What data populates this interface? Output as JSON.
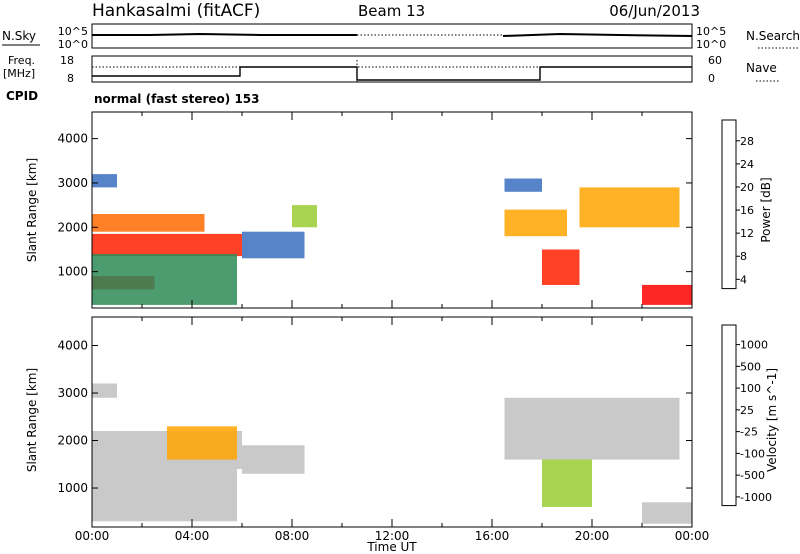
{
  "header": {
    "station": "Hankasalmi (fitACF)",
    "beam": "Beam 13",
    "date": "06/Jun/2013"
  },
  "noise_panel": {
    "left_label": "N.Sky",
    "left_ticks": [
      "10^5",
      "10^0"
    ],
    "right_ticks": [
      "10^5",
      "10^0"
    ],
    "right_label": "N.Search"
  },
  "freq_panel": {
    "left_label_1": "Freq.",
    "left_label_2": "[MHz]",
    "left_ticks": [
      "18",
      "8"
    ],
    "right_ticks": [
      "60",
      "0"
    ],
    "right_label": "Nave"
  },
  "cpid": {
    "label": "CPID",
    "text": "normal (fast stereo) 153"
  },
  "colors": {
    "power": [
      "#0000ff",
      "#1f4fd0",
      "#3a6ec0",
      "#2e8b57",
      "#3fa34d",
      "#9acd32",
      "#ffd700",
      "#ffa500",
      "#ff6a00",
      "#ff2000",
      "#ff0000"
    ],
    "velocity": [
      "#0000cc",
      "#1e5fb0",
      "#2e8b57",
      "#56b04a",
      "#9acd32",
      "#c0c0c0",
      "#c0c0c0",
      "#ffd700",
      "#ffa500",
      "#ff6a00",
      "#ff0000"
    ]
  },
  "chart_data": [
    {
      "type": "heatmap",
      "name": "power",
      "xlabel": "",
      "ylabel": "Slant Range [km]",
      "xlim": [
        0,
        24
      ],
      "ylim": [
        180,
        4600
      ],
      "yticks": [
        1000,
        2000,
        3000,
        4000
      ],
      "colorbar": {
        "label": "Power [dB]",
        "ticks": [
          "28",
          "24",
          "20",
          "16",
          "12",
          "8",
          "4"
        ],
        "range": [
          0,
          30
        ]
      },
      "bands": [
        {
          "x": [
            0.0,
            6.0
          ],
          "y": [
            1350,
            1850
          ],
          "level": 26
        },
        {
          "x": [
            0.0,
            2.5
          ],
          "y": [
            600,
            900
          ],
          "level": 28
        },
        {
          "x": [
            0.0,
            4.5
          ],
          "y": [
            1900,
            2300
          ],
          "level": 22
        },
        {
          "x": [
            0.0,
            5.8
          ],
          "y": [
            250,
            1400
          ],
          "level": 10
        },
        {
          "x": [
            0.0,
            1.0
          ],
          "y": [
            2900,
            3200
          ],
          "level": 6
        },
        {
          "x": [
            6.0,
            8.5
          ],
          "y": [
            1300,
            1900
          ],
          "level": 8
        },
        {
          "x": [
            8.0,
            9.0
          ],
          "y": [
            2000,
            2500
          ],
          "level": 14
        },
        {
          "x": [
            16.5,
            19.0
          ],
          "y": [
            1800,
            2400
          ],
          "level": 20
        },
        {
          "x": [
            18.0,
            19.5
          ],
          "y": [
            700,
            1500
          ],
          "level": 26
        },
        {
          "x": [
            19.5,
            23.5
          ],
          "y": [
            2000,
            2900
          ],
          "level": 20
        },
        {
          "x": [
            22.0,
            24.0
          ],
          "y": [
            250,
            700
          ],
          "level": 28
        },
        {
          "x": [
            16.5,
            18.0
          ],
          "y": [
            2800,
            3100
          ],
          "level": 6
        }
      ]
    },
    {
      "type": "heatmap",
      "name": "velocity",
      "xlabel": "Time UT",
      "ylabel": "Slant Range [km]",
      "xlim": [
        0,
        24
      ],
      "ylim": [
        180,
        4600
      ],
      "xticks": [
        "00:00",
        "04:00",
        "08:00",
        "12:00",
        "16:00",
        "20:00",
        "00:00"
      ],
      "yticks": [
        1000,
        2000,
        3000,
        4000
      ],
      "colorbar": {
        "label": "Velocity [m s^-1]",
        "ticks": [
          "1000",
          "500",
          "100",
          "25",
          "-25",
          "-100",
          "-500",
          "-1000"
        ],
        "range": [
          -1250,
          1250
        ]
      },
      "bands": [
        {
          "x": [
            0.0,
            6.0
          ],
          "y": [
            1400,
            2200
          ],
          "level": 0
        },
        {
          "x": [
            0.0,
            5.8
          ],
          "y": [
            300,
            1400
          ],
          "level": 0
        },
        {
          "x": [
            3.0,
            5.8
          ],
          "y": [
            1600,
            2300
          ],
          "level": -700
        },
        {
          "x": [
            0.0,
            1.0
          ],
          "y": [
            2900,
            3200
          ],
          "level": 0
        },
        {
          "x": [
            6.0,
            8.5
          ],
          "y": [
            1300,
            1900
          ],
          "level": 0
        },
        {
          "x": [
            16.5,
            23.5
          ],
          "y": [
            1600,
            2900
          ],
          "level": 0
        },
        {
          "x": [
            18.0,
            20.0
          ],
          "y": [
            600,
            1600
          ],
          "level": 300
        },
        {
          "x": [
            22.0,
            24.0
          ],
          "y": [
            250,
            700
          ],
          "level": 0
        }
      ]
    }
  ]
}
